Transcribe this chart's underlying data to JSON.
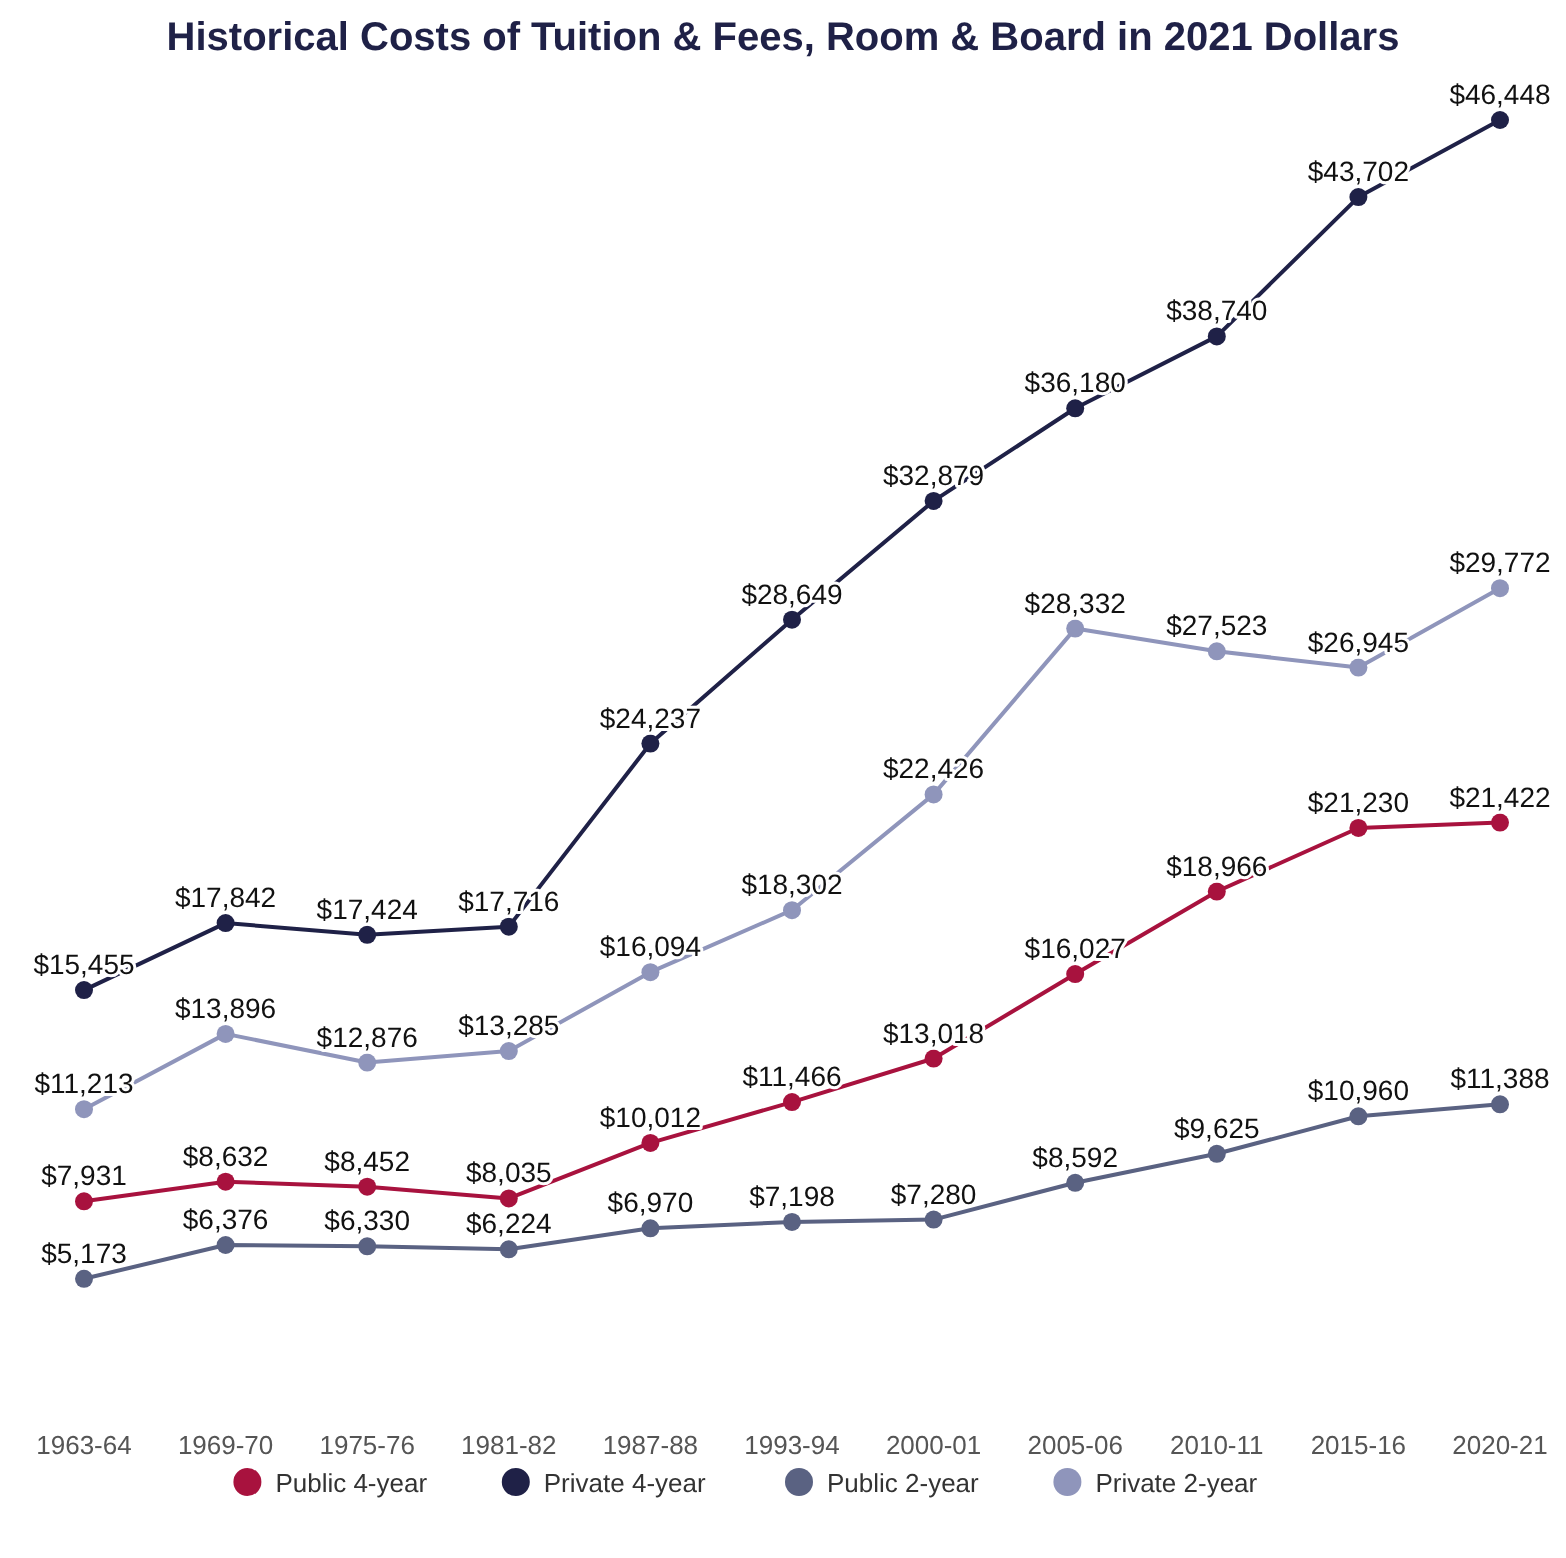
{
  "chart_data": {
    "type": "line",
    "title": "Historical Costs of Tuition & Fees, Room & Board in 2021 Dollars",
    "categories": [
      "1963-64",
      "1969-70",
      "1975-76",
      "1981-82",
      "1987-88",
      "1993-94",
      "2000-01",
      "2005-06",
      "2010-11",
      "2015-16",
      "2020-21"
    ],
    "series": [
      {
        "name": "Public 4-year",
        "color": "#a8123e",
        "values": [
          7931,
          8632,
          8452,
          8035,
          10012,
          11466,
          13018,
          16027,
          18966,
          21230,
          21422
        ],
        "value_labels": [
          "$7,931",
          "$8,632",
          "$8,452",
          "$8,035",
          "$10,012",
          "$11,466",
          "$13,018",
          "$16,027",
          "$18,966",
          "$21,230",
          "$21,422"
        ]
      },
      {
        "name": "Private 4-year",
        "color": "#1f2147",
        "values": [
          15455,
          17842,
          17424,
          17716,
          24237,
          28649,
          32879,
          36180,
          38740,
          43702,
          46448
        ],
        "value_labels": [
          "$15,455",
          "$17,842",
          "$17,424",
          "$17,716",
          "$24,237",
          "$28,649",
          "$32,879",
          "$36,180",
          "$38,740",
          "$43,702",
          "$46,448"
        ]
      },
      {
        "name": "Public 2-year",
        "color": "#5a6282",
        "values": [
          5173,
          6376,
          6330,
          6224,
          6970,
          7198,
          7280,
          8592,
          9625,
          10960,
          11388
        ],
        "value_labels": [
          "$5,173",
          "$6,376",
          "$6,330",
          "$6,224",
          "$6,970",
          "$7,198",
          "$7,280",
          "$8,592",
          "$9,625",
          "$10,960",
          "$11,388"
        ]
      },
      {
        "name": "Private 2-year",
        "color": "#8f95bb",
        "values": [
          11213,
          13896,
          12876,
          13285,
          16094,
          18302,
          22426,
          28332,
          27523,
          26945,
          29772
        ],
        "value_labels": [
          "$11,213",
          "$13,896",
          "$12,876",
          "$13,285",
          "$16,094",
          "$18,302",
          "$22,426",
          "$28,332",
          "$27,523",
          "$26,945",
          "$29,772"
        ]
      }
    ],
    "marker": "circle",
    "legend": "bottom",
    "grid": false
  }
}
